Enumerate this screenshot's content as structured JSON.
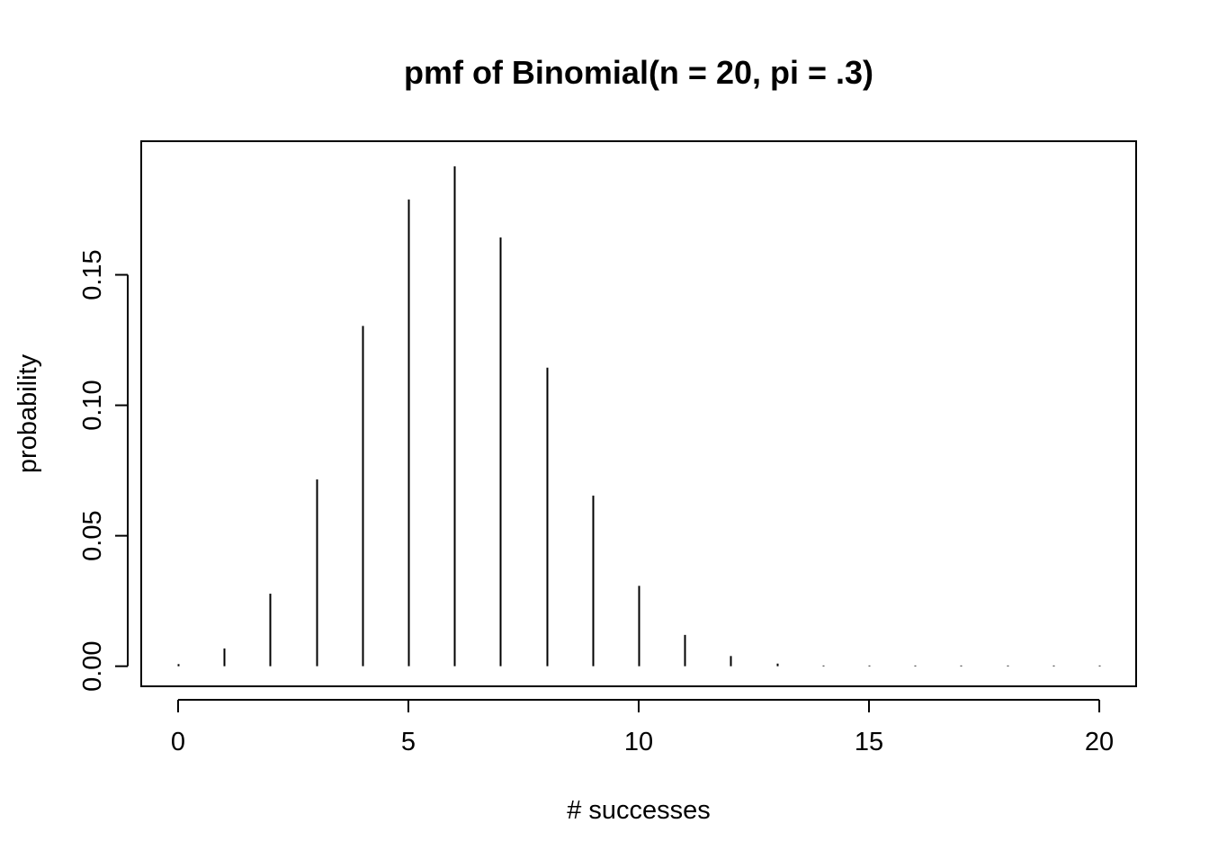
{
  "chart_data": {
    "type": "bar",
    "title": "pmf of Binomial(n = 20, pi = .3)",
    "xlabel": "# successes",
    "ylabel": "probability",
    "x": [
      0,
      1,
      2,
      3,
      4,
      5,
      6,
      7,
      8,
      9,
      10,
      11,
      12,
      13,
      14,
      15,
      16,
      17,
      18,
      19,
      20
    ],
    "values": [
      0.0008,
      0.0068,
      0.0278,
      0.0716,
      0.1304,
      0.1789,
      0.1916,
      0.1643,
      0.1144,
      0.0654,
      0.0308,
      0.012,
      0.0039,
      0.001,
      0.0002,
      4e-05,
      5e-06,
      5e-07,
      4e-08,
      2e-09,
      3e-11
    ],
    "xlim": [
      -0.8,
      20.8
    ],
    "ylim": [
      -0.0077,
      0.2012
    ],
    "x_ticks": [
      "0",
      "5",
      "10",
      "15",
      "20"
    ],
    "y_ticks": [
      "0.00",
      "0.05",
      "0.10",
      "0.15"
    ],
    "grid": false,
    "legend": "none",
    "colors": {
      "line": "#000000",
      "background": "#ffffff"
    }
  }
}
